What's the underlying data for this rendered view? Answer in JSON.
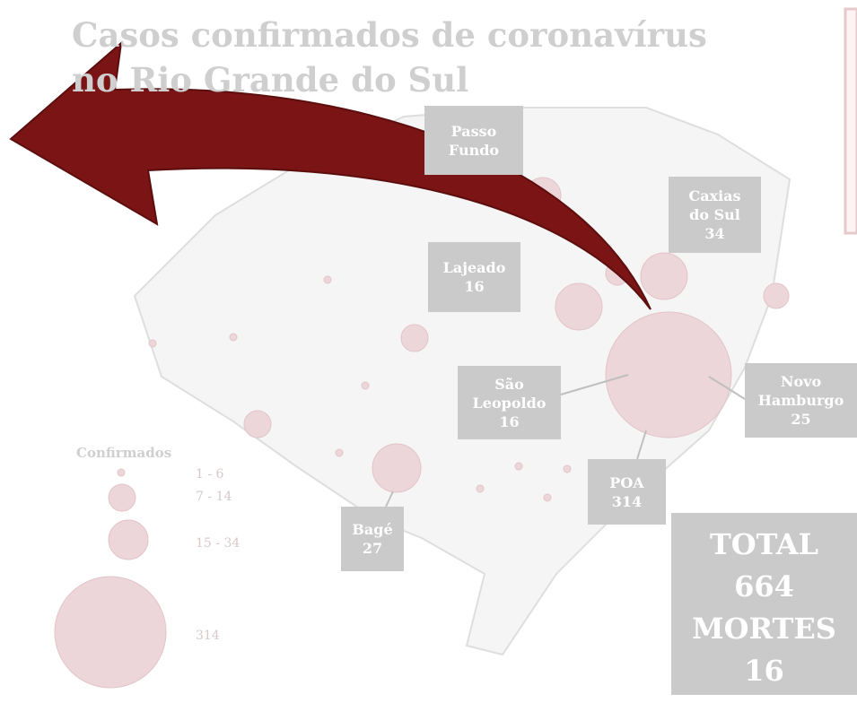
{
  "title": "Casos confirmados de coronavírus no Rio Grande do Sul",
  "legend": {
    "title": "Confirmados",
    "items": [
      "1 - 6",
      "7 - 14",
      "15 - 34",
      "314"
    ]
  },
  "cities": [
    {
      "name": "Passo Fundo"
    },
    {
      "name": "Caxias do Sul",
      "cases": "34"
    },
    {
      "name": "Lajeado",
      "cases": "16"
    },
    {
      "name": "São Leopoldo",
      "cases": "16"
    },
    {
      "name": "Novo Hamburgo",
      "cases": "25"
    },
    {
      "name": "POA",
      "cases": "314"
    },
    {
      "name": "Bagé",
      "cases": "27"
    }
  ],
  "totals": {
    "total_label": "TOTAL",
    "total": "664",
    "deaths_label": "MORTES",
    "deaths": "16"
  }
}
